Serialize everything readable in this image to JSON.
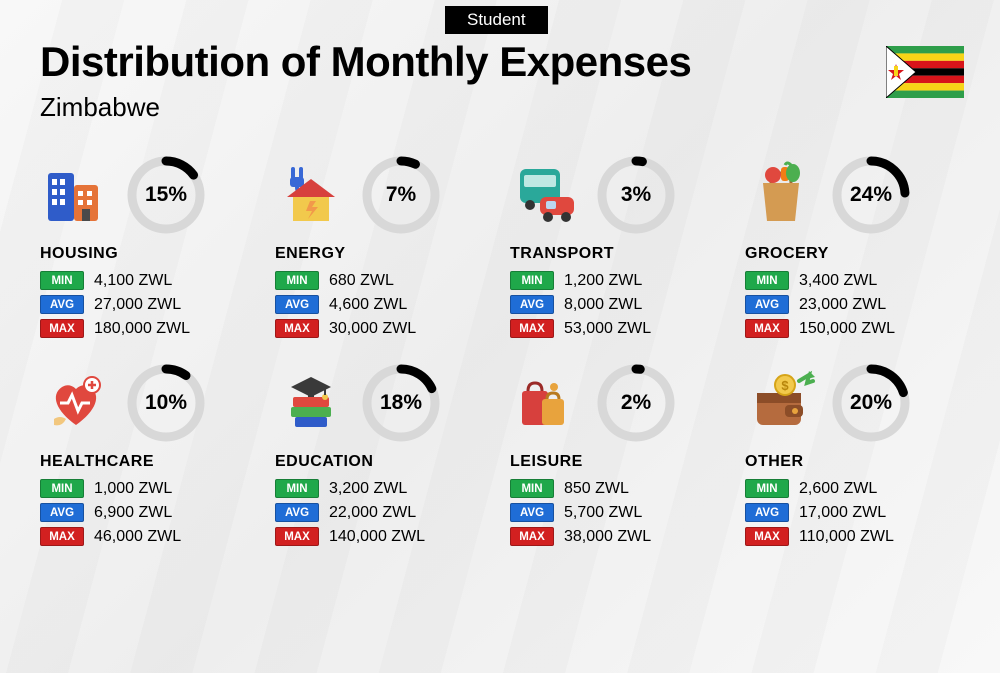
{
  "badge": "Student",
  "title": "Distribution of Monthly Expenses",
  "subtitle": "Zimbabwe",
  "currency": "ZWL",
  "labels": {
    "min": "MIN",
    "avg": "AVG",
    "max": "MAX"
  },
  "tag_colors": {
    "min": "#1fa84a",
    "avg": "#1f6dd6",
    "max": "#d22020"
  },
  "ring": {
    "radius": 34,
    "stroke_width": 9,
    "bg_color": "#d8d8d8",
    "fg_color": "#000000"
  },
  "flag": {
    "stripes": [
      "#2e9e4a",
      "#f7d417",
      "#d7141a",
      "#000000",
      "#d7141a",
      "#f7d417",
      "#2e9e4a"
    ],
    "triangle": "#ffffff",
    "bird": "#f7d417",
    "star": "#d7141a"
  },
  "categories": [
    {
      "key": "housing",
      "name": "HOUSING",
      "percent": 15,
      "min": "4,100",
      "avg": "27,000",
      "max": "180,000",
      "icon": "buildings"
    },
    {
      "key": "energy",
      "name": "ENERGY",
      "percent": 7,
      "min": "680",
      "avg": "4,600",
      "max": "30,000",
      "icon": "house-energy"
    },
    {
      "key": "transport",
      "name": "TRANSPORT",
      "percent": 3,
      "min": "1,200",
      "avg": "8,000",
      "max": "53,000",
      "icon": "bus-car"
    },
    {
      "key": "grocery",
      "name": "GROCERY",
      "percent": 24,
      "min": "3,400",
      "avg": "23,000",
      "max": "150,000",
      "icon": "grocery-bag"
    },
    {
      "key": "healthcare",
      "name": "HEALTHCARE",
      "percent": 10,
      "min": "1,000",
      "avg": "6,900",
      "max": "46,000",
      "icon": "heart-care"
    },
    {
      "key": "education",
      "name": "EDUCATION",
      "percent": 18,
      "min": "3,200",
      "avg": "22,000",
      "max": "140,000",
      "icon": "books-cap"
    },
    {
      "key": "leisure",
      "name": "LEISURE",
      "percent": 2,
      "min": "850",
      "avg": "5,700",
      "max": "38,000",
      "icon": "shopping-bags"
    },
    {
      "key": "other",
      "name": "OTHER",
      "percent": 20,
      "min": "2,600",
      "avg": "17,000",
      "max": "110,000",
      "icon": "wallet"
    }
  ]
}
